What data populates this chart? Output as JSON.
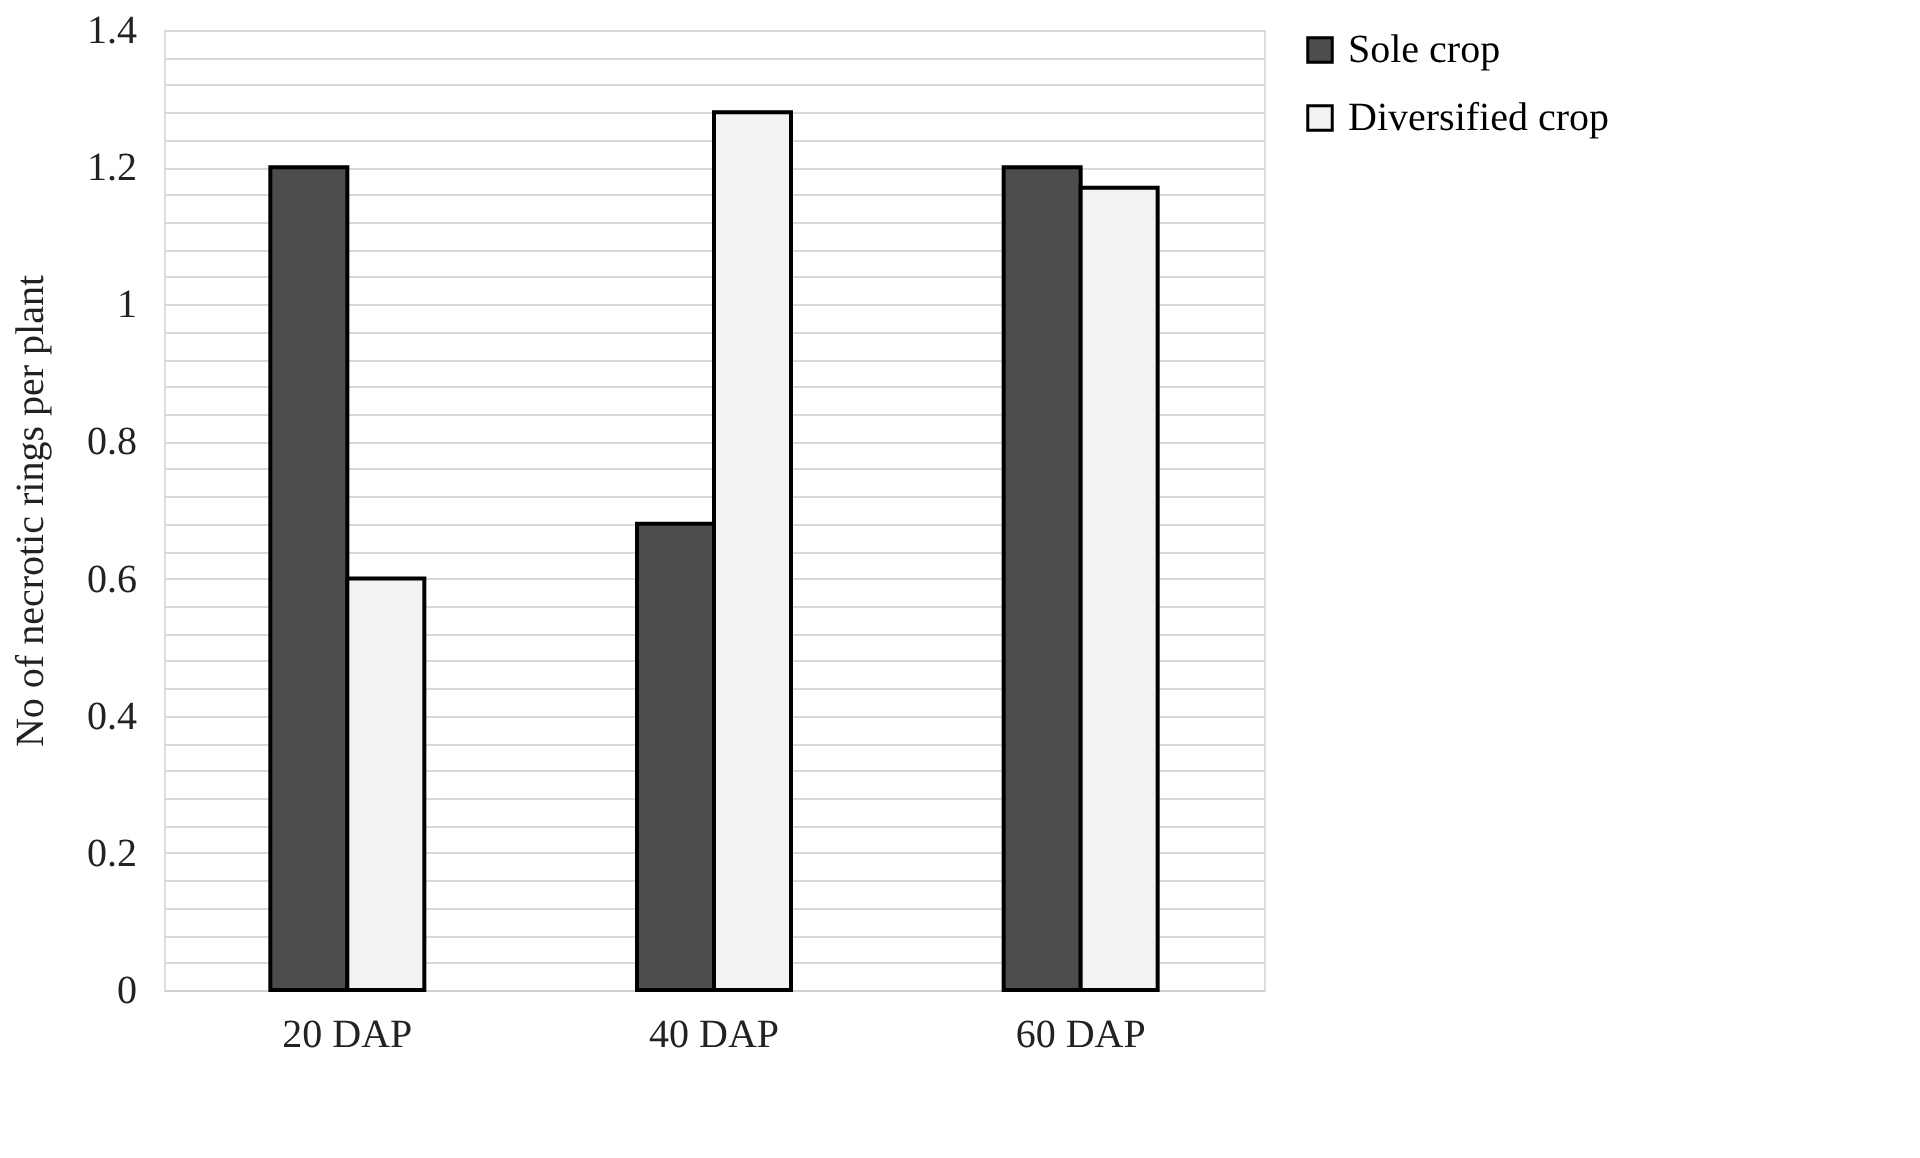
{
  "chart_data": {
    "type": "bar",
    "ylabel": "No of necrotic rings per plant",
    "categories": [
      "20 DAP",
      "40 DAP",
      "60 DAP"
    ],
    "series": [
      {
        "name": "Sole crop",
        "color": "#4d4d4d",
        "values": [
          1.2,
          0.68,
          1.2
        ]
      },
      {
        "name": "Diversified crop",
        "color": "#f2f2f2",
        "values": [
          0.6,
          1.28,
          1.17
        ]
      }
    ],
    "ylim": [
      0,
      1.4
    ],
    "yticks": [
      0,
      {
        "value": 0.04,
        "label": null
      },
      {
        "value": 0.08,
        "label": null
      },
      {
        "value": 0.12,
        "label": null
      },
      {
        "value": 0.16,
        "label": null
      },
      0.2,
      {
        "value": 0.24,
        "label": null
      },
      {
        "value": 0.28,
        "label": null
      },
      {
        "value": 0.32,
        "label": null
      },
      {
        "value": 0.36,
        "label": null
      },
      0.4,
      {
        "value": 0.44,
        "label": null
      },
      {
        "value": 0.48,
        "label": null
      },
      {
        "value": 0.52,
        "label": null
      },
      {
        "value": 0.56,
        "label": null
      },
      0.6,
      {
        "value": 0.64,
        "label": null
      },
      {
        "value": 0.68,
        "label": null
      },
      {
        "value": 0.72,
        "label": null
      },
      {
        "value": 0.76,
        "label": null
      },
      0.8,
      {
        "value": 0.84,
        "label": null
      },
      {
        "value": 0.88,
        "label": null
      },
      {
        "value": 0.92,
        "label": null
      },
      {
        "value": 0.96,
        "label": null
      },
      1,
      {
        "value": 1.04,
        "label": null
      },
      {
        "value": 1.08,
        "label": null
      },
      {
        "value": 1.12,
        "label": null
      },
      {
        "value": 1.16,
        "label": null
      },
      1.2,
      {
        "value": 1.24,
        "label": null
      },
      {
        "value": 1.28,
        "label": null
      },
      {
        "value": 1.32,
        "label": null
      },
      {
        "value": 1.36,
        "label": null
      },
      1.4
    ],
    "grid": "y",
    "legend": "right"
  }
}
